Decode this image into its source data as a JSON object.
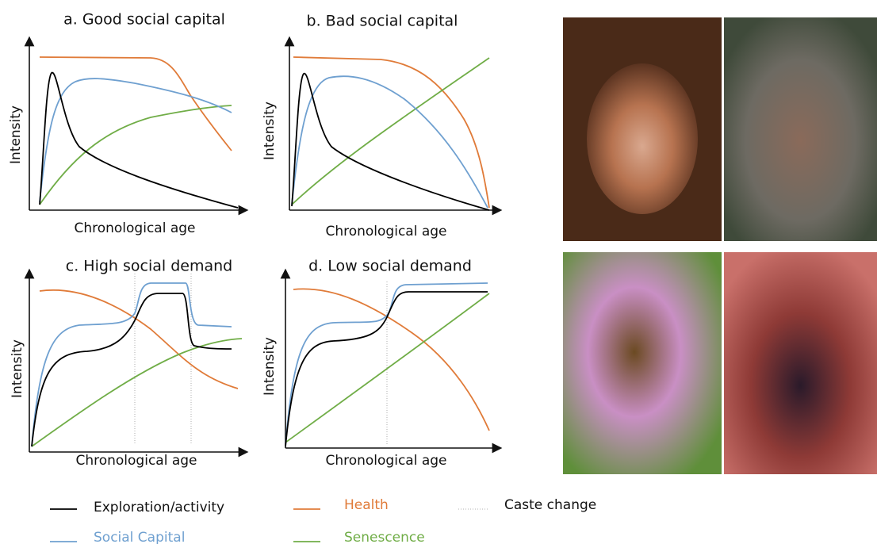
{
  "panels": [
    {
      "title": "a. Good social capital",
      "y_label": "Intensity",
      "x_label": "Chronological age"
    },
    {
      "title": "b. Bad social capital",
      "y_label": "Intensity",
      "x_label": "Chronological age"
    },
    {
      "title": "c. High social demand",
      "y_label": "Intensity",
      "x_label": "Chronological age"
    },
    {
      "title": "d. Low social demand",
      "y_label": "Intensity",
      "x_label": "Chronological age"
    }
  ],
  "legend": [
    "Exploration/activity",
    "Health",
    "Caste change",
    "Social Capital",
    "Senescence"
  ]
}
